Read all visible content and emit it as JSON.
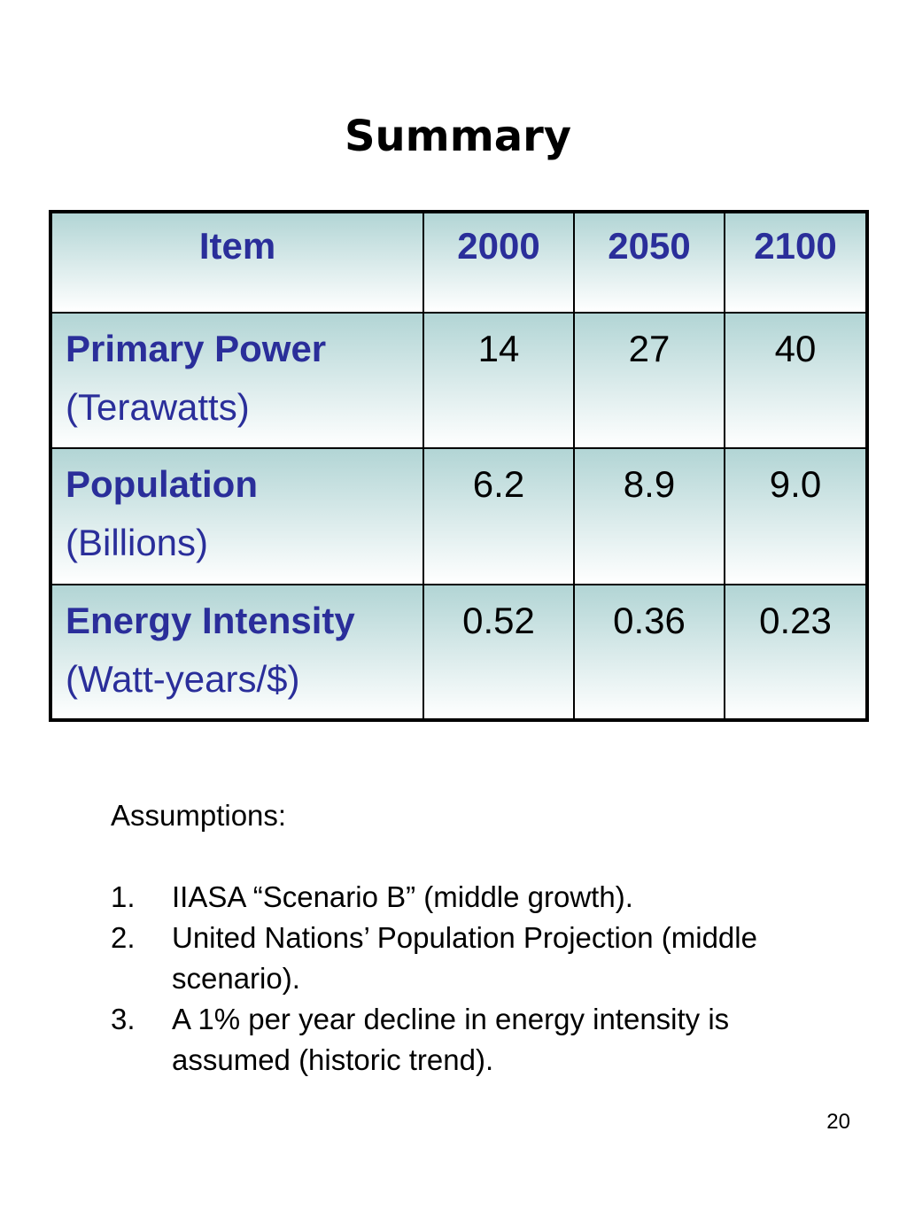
{
  "title": "Summary",
  "table": {
    "headers": [
      "Item",
      "2000",
      "2050",
      "2100"
    ],
    "rows": [
      {
        "name": "Primary Power",
        "unit": "(Terawatts)",
        "values": [
          "14",
          "27",
          "40"
        ]
      },
      {
        "name": "Population",
        "unit": "(Billions)",
        "values": [
          "6.2",
          "8.9",
          "9.0"
        ]
      },
      {
        "name": "Energy Intensity",
        "unit": "(Watt-years/$)",
        "values": [
          "0.52",
          "0.36",
          "0.23"
        ]
      }
    ]
  },
  "assumptions": {
    "heading": "Assumptions:",
    "items": [
      {
        "number": "1.",
        "text": "IIASA “Scenario B” (middle growth)."
      },
      {
        "number": "2.",
        "text": "United Nations’ Population Projection (middle scenario)."
      },
      {
        "number": "3.",
        "text": "A 1% per year decline in energy intensity is assumed (historic trend)."
      }
    ]
  },
  "page_number": "20",
  "colors": {
    "header_text": "#2a2e9a",
    "cell_gradient_top": "#b2d5d5",
    "cell_gradient_bottom": "#ffffff",
    "border": "#000000"
  }
}
